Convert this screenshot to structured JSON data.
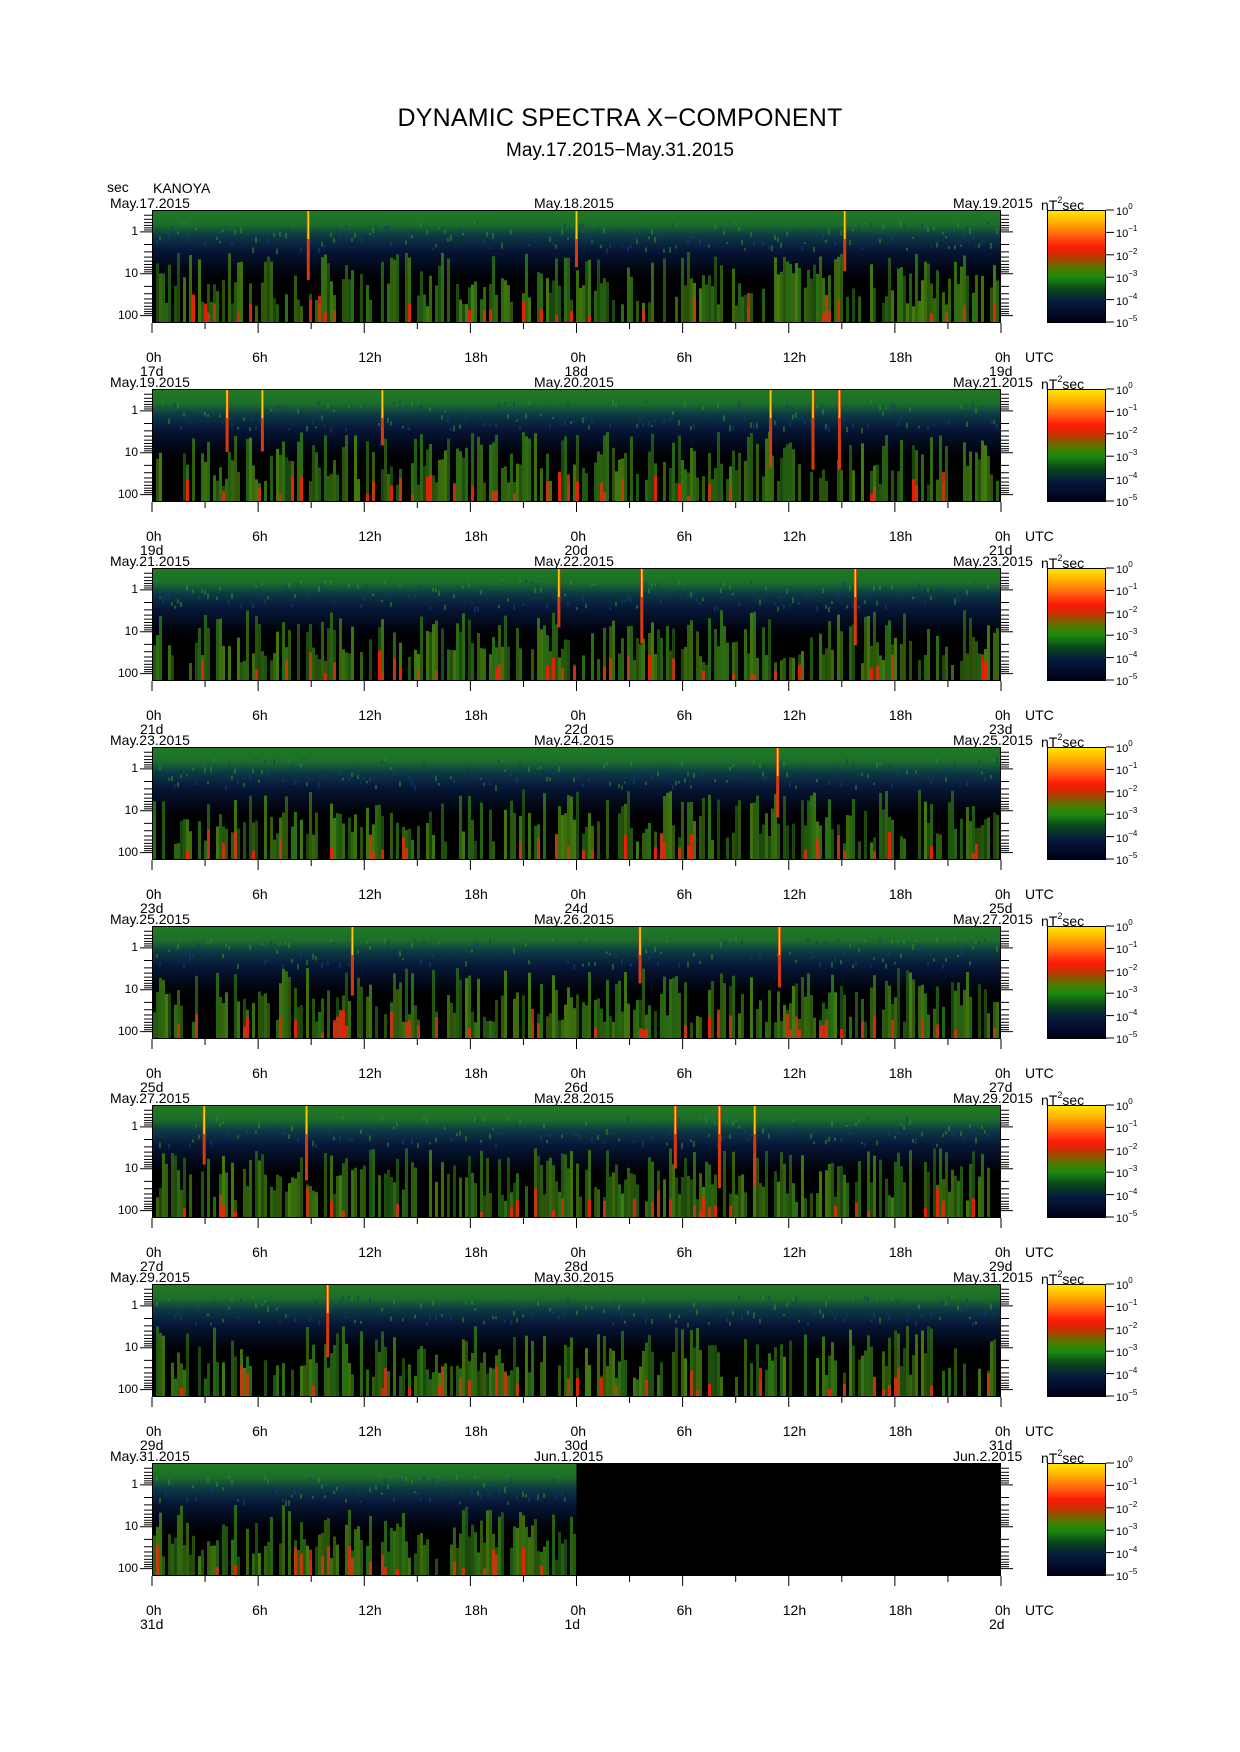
{
  "header": {
    "title": "DYNAMIC SPECTRA X−COMPONENT",
    "subtitle": "May.17.2015−May.31.2015",
    "y_unit": "sec",
    "station": "KANOYA"
  },
  "axis": {
    "y_ticks": [
      "1",
      "10",
      "100"
    ],
    "x_ticks": [
      "0h",
      "6h",
      "12h",
      "18h",
      "0h",
      "6h",
      "12h",
      "18h",
      "0h"
    ],
    "utc_label": "UTC",
    "colorbar_unit_base": "nT",
    "colorbar_unit_exp": "2",
    "colorbar_unit_tail": "sec",
    "colorbar_base": "10",
    "colorbar_exponents": [
      "0",
      "−1",
      "−2",
      "−3",
      "−4",
      "−5"
    ]
  },
  "colors": {
    "low": "#000018",
    "mid_blue": "#061a3c",
    "green": "#1a8a10",
    "red": "#ff1a08",
    "yellow": "#ffe600"
  },
  "chart_data": {
    "type": "heatmap",
    "title": "DYNAMIC SPECTRA X−COMPONENT",
    "subtitle": "May.17.2015−May.31.2015",
    "ylabel": "sec",
    "y_scale": "log",
    "y_ticks": [
      1,
      10,
      100
    ],
    "colorbar_label": "nT^2 sec",
    "colorbar_range_log10": [
      -5,
      0
    ],
    "panels": [
      {
        "date_left": "May.17.2015",
        "date_mid": "May.18.2015",
        "date_right": "May.19.2015",
        "day_labels": [
          "17d",
          "18d",
          "19d"
        ],
        "data_coverage": 1.0,
        "pulsation_hours": [
          8.8,
          24,
          39.2
        ]
      },
      {
        "date_left": "May.19.2015",
        "date_mid": "May.20.2015",
        "date_right": "May.21.2015",
        "day_labels": [
          "19d",
          "20d",
          "21d"
        ],
        "data_coverage": 1.0,
        "pulsation_hours": [
          4.2,
          6.2,
          13.0,
          35.0,
          37.4,
          38.9
        ]
      },
      {
        "date_left": "May.21.2015",
        "date_mid": "May.22.2015",
        "date_right": "May.23.2015",
        "day_labels": [
          "21d",
          "22d",
          "23d"
        ],
        "data_coverage": 1.0,
        "pulsation_hours": [
          23.0,
          27.7,
          39.8
        ]
      },
      {
        "date_left": "May.23.2015",
        "date_mid": "May.24.2015",
        "date_right": "May.25.2015",
        "day_labels": [
          "23d",
          "24d",
          "25d"
        ],
        "data_coverage": 1.0,
        "pulsation_hours": [
          35.4
        ]
      },
      {
        "date_left": "May.25.2015",
        "date_mid": "May.26.2015",
        "date_right": "May.27.2015",
        "day_labels": [
          "25d",
          "26d",
          "27d"
        ],
        "data_coverage": 1.0,
        "pulsation_hours": [
          11.3,
          27.6,
          35.5
        ]
      },
      {
        "date_left": "May.27.2015",
        "date_mid": "May.28.2015",
        "date_right": "May.29.2015",
        "day_labels": [
          "27d",
          "28d",
          "29d"
        ],
        "data_coverage": 1.0,
        "pulsation_hours": [
          2.9,
          8.7,
          29.6,
          32.1,
          34.1
        ]
      },
      {
        "date_left": "May.29.2015",
        "date_mid": "May.30.2015",
        "date_right": "May.31.2015",
        "day_labels": [
          "29d",
          "30d",
          "31d"
        ],
        "data_coverage": 1.0,
        "pulsation_hours": [
          9.9
        ]
      },
      {
        "date_left": "May.31.2015",
        "date_mid": "Jun.1.2015",
        "date_right": "Jun.2.2015",
        "day_labels": [
          "31d",
          "1d",
          "2d"
        ],
        "data_coverage": 0.5,
        "pulsation_hours": []
      }
    ]
  }
}
